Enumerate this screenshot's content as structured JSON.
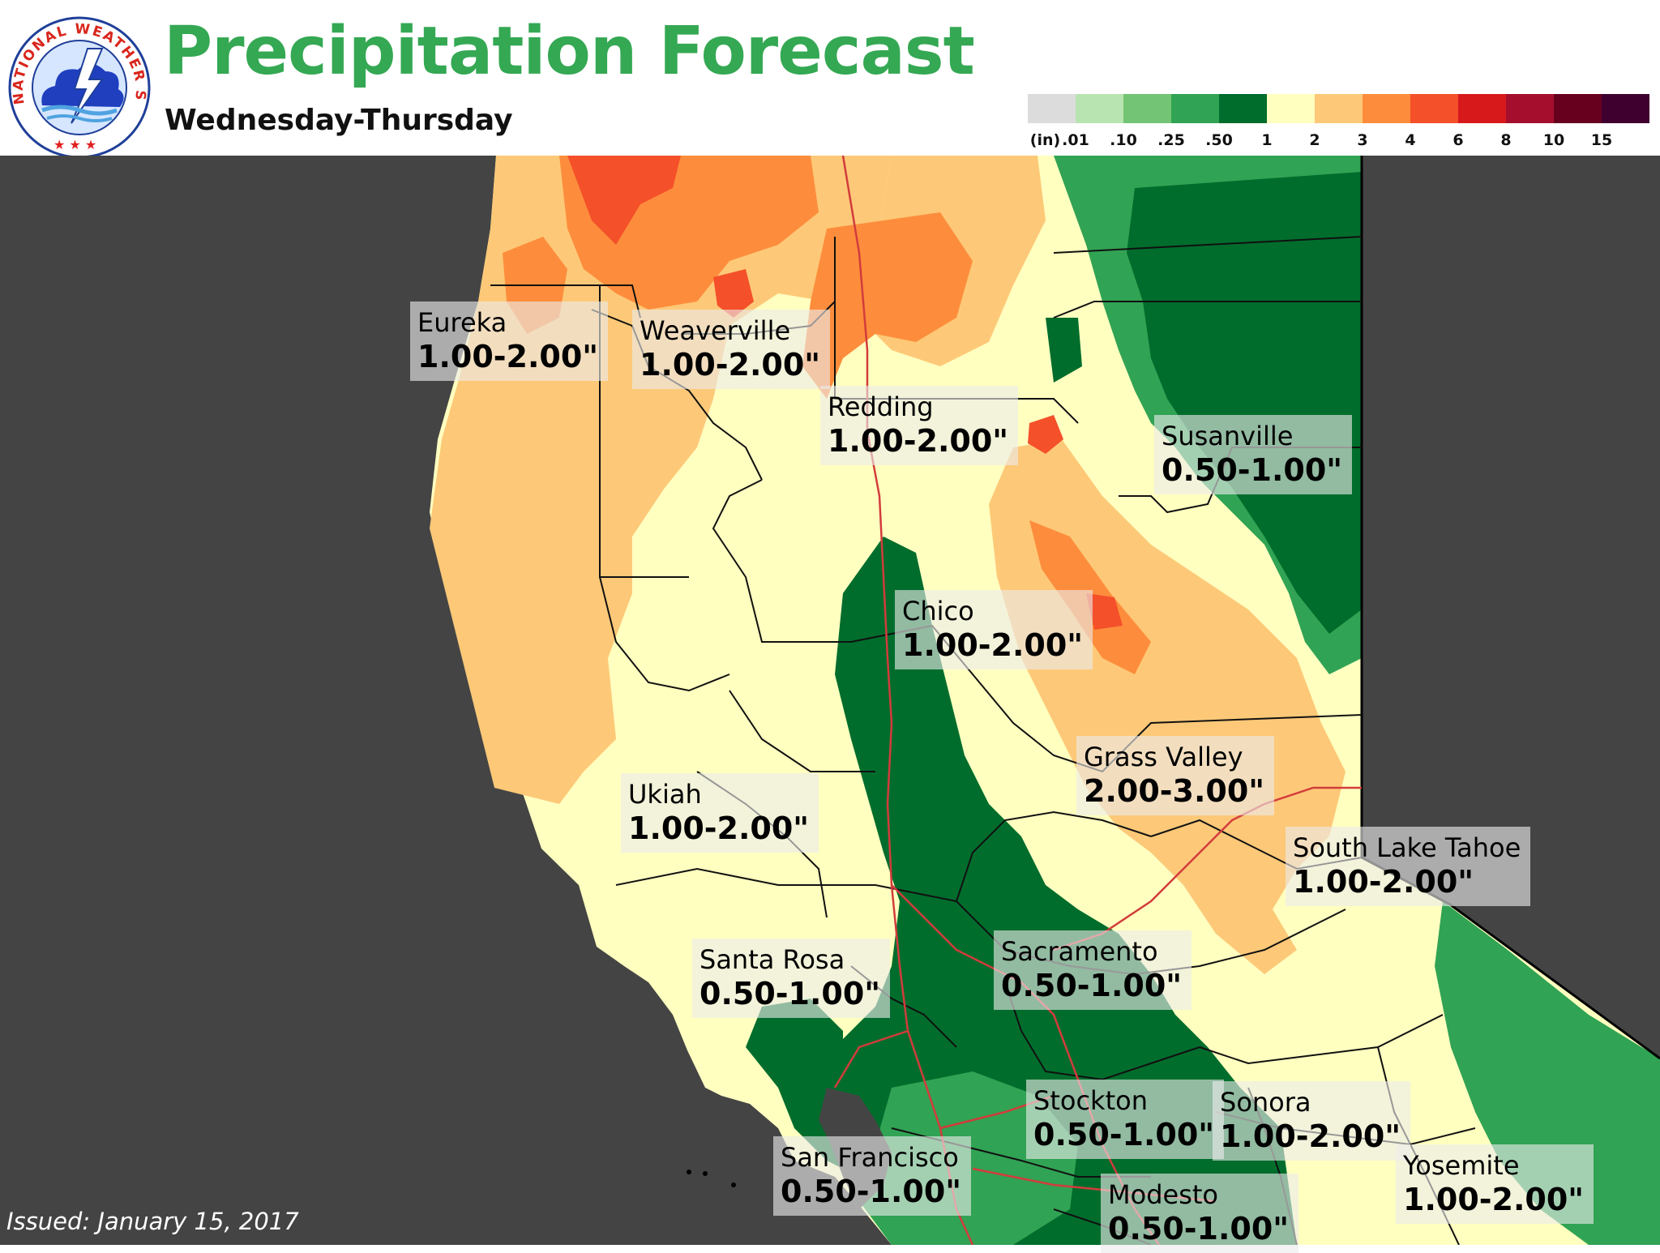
{
  "header": {
    "title": "Precipitation Forecast",
    "subtitle": "Wednesday-Thursday",
    "logo_text": "NATIONAL WEATHER SERVICE"
  },
  "legend": {
    "unit": "(in)",
    "ticks": [
      ".01",
      ".10",
      ".25",
      ".50",
      "1",
      "2",
      "3",
      "4",
      "6",
      "8",
      "10",
      "15"
    ],
    "colors": [
      "#dcdcdc",
      "#b8e4b2",
      "#74c476",
      "#31a354",
      "#006d2c",
      "#ffffc0",
      "#fdc978",
      "#fd8d3c",
      "#f4502a",
      "#d7191c",
      "#a50f2d",
      "#67001f",
      "#3f0030"
    ]
  },
  "map": {
    "land_colors": {
      "ocean": "#444444",
      "offmap": "#444444",
      "light_yellow": "#ffffc0",
      "tan": "#fdc978",
      "orange": "#fd8d3c",
      "red_orange": "#f4502a",
      "dark_green": "#006d2c",
      "green": "#31a354",
      "light_green": "#74c476"
    },
    "cities": [
      {
        "name": "Eureka",
        "range": "1.00-2.00\""
      },
      {
        "name": "Weaverville",
        "range": "1.00-2.00\""
      },
      {
        "name": "Redding",
        "range": "1.00-2.00\""
      },
      {
        "name": "Susanville",
        "range": "0.50-1.00\""
      },
      {
        "name": "Chico",
        "range": "1.00-2.00\""
      },
      {
        "name": "Grass Valley",
        "range": "2.00-3.00\""
      },
      {
        "name": "Ukiah",
        "range": "1.00-2.00\""
      },
      {
        "name": "South Lake Tahoe",
        "range": "1.00-2.00\""
      },
      {
        "name": "Santa Rosa",
        "range": "0.50-1.00\""
      },
      {
        "name": "Sacramento",
        "range": "0.50-1.00\""
      },
      {
        "name": "Stockton",
        "range": "0.50-1.00\""
      },
      {
        "name": "Sonora",
        "range": "1.00-2.00\""
      },
      {
        "name": "San Francisco",
        "range": "0.50-1.00\""
      },
      {
        "name": "Modesto",
        "range": "0.50-1.00\""
      },
      {
        "name": "Yosemite",
        "range": "1.00-2.00\""
      }
    ]
  },
  "footer": {
    "issued": "Issued: January 15, 2017"
  }
}
